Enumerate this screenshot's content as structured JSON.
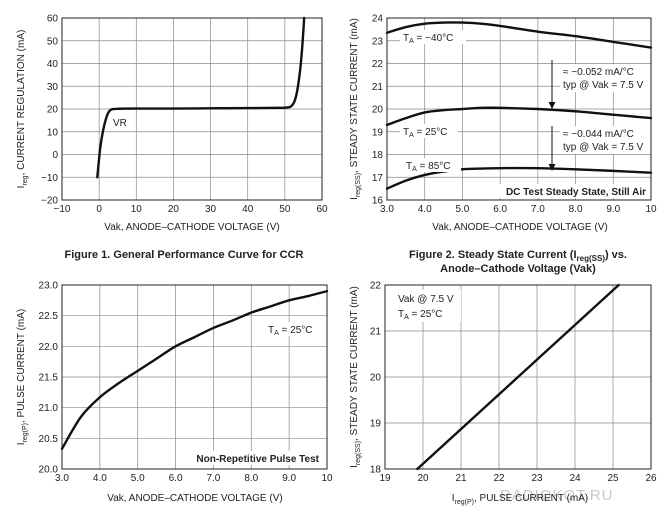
{
  "captions": {
    "fig1": "Figure 1. General Performance Curve for CCR",
    "fig2_line1": "Figure 2. Steady State Current (I",
    "fig2_sub": "reg(SS)",
    "fig2_line1_end": ") vs.",
    "fig2_line2": "Anode–Cathode Voltage (Vak)"
  },
  "watermark": "RADIOKOT.RU",
  "chart_data": [
    {
      "id": "fig1",
      "type": "line",
      "xlabel": "Vak, ANODE–CATHODE VOLTAGE (V)",
      "ylabel_main": "I",
      "ylabel_sub": "reg",
      "ylabel_rest": ", CURRENT REGULATION (mA)",
      "xlim": [
        -10,
        60
      ],
      "ylim": [
        -20,
        60
      ],
      "x_ticks": [
        "−10",
        "0",
        "10",
        "20",
        "30",
        "40",
        "50",
        "60"
      ],
      "x_tick_values": [
        -10,
        0,
        10,
        20,
        30,
        40,
        50,
        60
      ],
      "y_ticks": [
        "−20",
        "−10",
        "0",
        "10",
        "20",
        "30",
        "40",
        "50",
        "60"
      ],
      "y_tick_values": [
        -20,
        -10,
        0,
        10,
        20,
        30,
        40,
        50,
        60
      ],
      "grid": true,
      "annotations": [
        {
          "text": "VR",
          "x": 3.5,
          "y": 11
        }
      ],
      "series": [
        {
          "x": [
            -0.5,
            -0.2,
            0.3,
            1.0,
            1.8,
            2.5,
            3.2,
            4.0,
            5.0,
            10,
            20,
            30,
            40,
            48,
            50,
            51.5,
            52.5,
            53.2,
            53.8,
            54.3,
            54.8,
            55.2
          ],
          "y": [
            -10,
            -5,
            3,
            10,
            15.5,
            18.5,
            19.7,
            20.0,
            20.1,
            20.2,
            20.2,
            20.3,
            20.4,
            20.5,
            20.6,
            21,
            23,
            27,
            33,
            40,
            50,
            60
          ]
        }
      ]
    },
    {
      "id": "fig2",
      "type": "line",
      "xlabel": "Vak, ANODE–CATHODE VOLTAGE (V)",
      "ylabel_main": "I",
      "ylabel_sub": "reg(SS)",
      "ylabel_rest": ", STEADY STATE CURRENT (mA)",
      "xlim": [
        3,
        10
      ],
      "ylim": [
        16,
        24
      ],
      "x_ticks": [
        "3.0",
        "4.0",
        "5.0",
        "6.0",
        "7.0",
        "8.0",
        "9.0",
        "10"
      ],
      "x_tick_values": [
        3,
        4,
        5,
        6,
        7,
        8,
        9,
        10
      ],
      "y_ticks": [
        "16",
        "17",
        "18",
        "19",
        "20",
        "21",
        "22",
        "23",
        "24"
      ],
      "y_tick_values": [
        16,
        17,
        18,
        19,
        20,
        21,
        22,
        23,
        24
      ],
      "grid": true,
      "series": [
        {
          "name": "TA = −40°C",
          "label_main": "T",
          "label_sub": "A",
          "label_rest": " = −40°C",
          "x": [
            3,
            3.5,
            4,
            4.5,
            5,
            5.5,
            6,
            7,
            8,
            9,
            10
          ],
          "y": [
            23.35,
            23.6,
            23.75,
            23.8,
            23.8,
            23.75,
            23.65,
            23.4,
            23.2,
            22.95,
            22.7
          ]
        },
        {
          "name": "TA = 25°C",
          "label_main": "T",
          "label_sub": "A",
          "label_rest": " = 25°C",
          "x": [
            3,
            3.5,
            4,
            4.5,
            5,
            5.5,
            6,
            7,
            8,
            9,
            10
          ],
          "y": [
            19.3,
            19.6,
            19.85,
            19.95,
            20.0,
            20.05,
            20.05,
            20.0,
            19.9,
            19.75,
            19.6
          ]
        },
        {
          "name": "TA = 85°C",
          "label_main": "T",
          "label_sub": "A",
          "label_rest": " = 85°C",
          "x": [
            3,
            3.5,
            4,
            4.5,
            5,
            5.5,
            6,
            7,
            8,
            9,
            10
          ],
          "y": [
            16.5,
            16.85,
            17.1,
            17.25,
            17.35,
            17.38,
            17.4,
            17.4,
            17.35,
            17.28,
            17.2
          ]
        }
      ],
      "annotations": [
        {
          "line1": "≈ −0.052 mA/°C",
          "line2": "typ @ Vak = 7.5 V"
        },
        {
          "line1": "≈ −0.044 mA/°C",
          "line2": "typ @ Vak = 7.5 V"
        },
        {
          "text": "DC Test Steady State, Still Air"
        }
      ]
    },
    {
      "id": "fig3",
      "type": "line",
      "xlabel": "Vak, ANODE–CATHODE VOLTAGE (V)",
      "ylabel_main": "I",
      "ylabel_sub": "reg(P)",
      "ylabel_rest": ", PULSE CURRENT (mA)",
      "xlim": [
        3,
        10
      ],
      "ylim": [
        20,
        23
      ],
      "x_ticks": [
        "3.0",
        "4.0",
        "5.0",
        "6.0",
        "7.0",
        "8.0",
        "9.0",
        "10"
      ],
      "x_tick_values": [
        3,
        4,
        5,
        6,
        7,
        8,
        9,
        10
      ],
      "y_ticks": [
        "20.0",
        "20.5",
        "21.0",
        "21.5",
        "22.0",
        "22.5",
        "23.0"
      ],
      "y_tick_values": [
        20,
        20.5,
        21,
        21.5,
        22,
        22.5,
        23
      ],
      "grid": true,
      "annotations": [
        {
          "main": "T",
          "sub": "A",
          "rest": " = 25°C"
        },
        {
          "text": "Non-Repetitive Pulse Test"
        }
      ],
      "series": [
        {
          "x": [
            3,
            3.5,
            4,
            4.5,
            5,
            5.5,
            6,
            6.5,
            7,
            7.5,
            8,
            8.5,
            9,
            9.5,
            10
          ],
          "y": [
            20.33,
            20.85,
            21.17,
            21.4,
            21.6,
            21.8,
            22.0,
            22.15,
            22.3,
            22.42,
            22.55,
            22.65,
            22.75,
            22.82,
            22.9
          ]
        }
      ]
    },
    {
      "id": "fig4",
      "type": "line",
      "xlabel_main": "I",
      "xlabel_sub": "reg(P)",
      "xlabel_rest": ", PULSE CURRENT (mA)",
      "ylabel_main": "I",
      "ylabel_sub": "reg(SS)",
      "ylabel_rest": ", STEADY STATE CURRENT (mA)",
      "xlim": [
        19,
        26
      ],
      "ylim": [
        18,
        22
      ],
      "x_ticks": [
        "19",
        "20",
        "21",
        "22",
        "23",
        "24",
        "25",
        "26"
      ],
      "x_tick_values": [
        19,
        20,
        21,
        22,
        23,
        24,
        25,
        26
      ],
      "y_ticks": [
        "18",
        "19",
        "20",
        "21",
        "22"
      ],
      "y_tick_values": [
        18,
        19,
        20,
        21,
        22
      ],
      "grid": true,
      "annotations": [
        {
          "text": "Vak @ 7.5 V"
        },
        {
          "main": "T",
          "sub": "A",
          "rest": " = 25°C"
        }
      ],
      "series": [
        {
          "x": [
            19.85,
            25.15
          ],
          "y": [
            18.0,
            22.0
          ]
        }
      ]
    }
  ]
}
